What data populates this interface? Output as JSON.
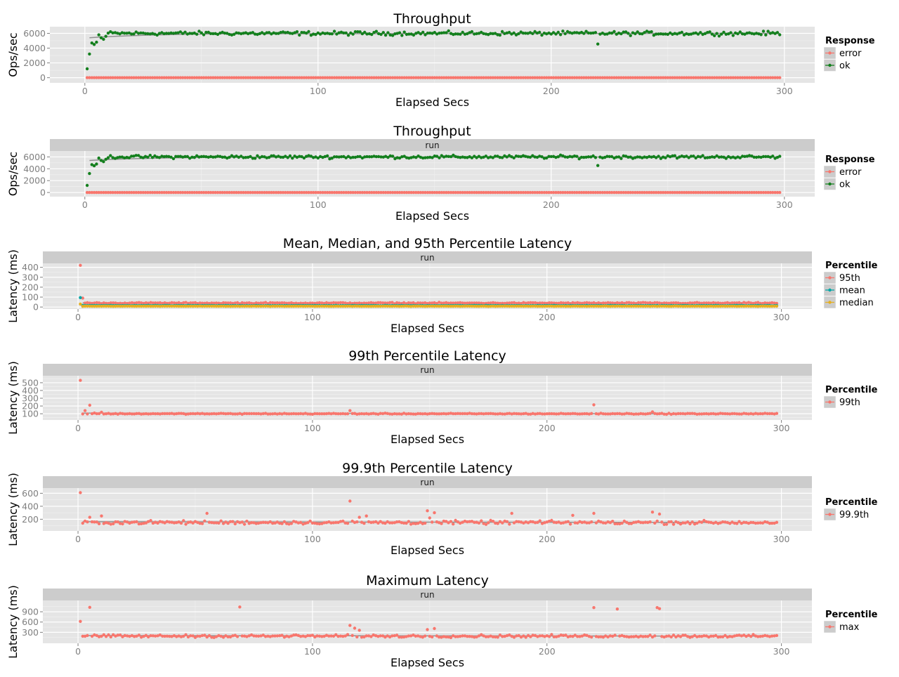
{
  "colors": {
    "ok": "#137f1d",
    "error": "#f8766d",
    "teal": "#00a6a6",
    "orange": "#e6b020",
    "panel": "#e5e5e5",
    "grid": "#ffffff",
    "strip": "#cccccc",
    "smooth": "#7a7a7a"
  },
  "chart_data": [
    {
      "type": "scatter",
      "title": "Throughput",
      "xlabel": "Elapsed Secs",
      "ylabel": "Ops/sec",
      "xlim": [
        -15,
        313
      ],
      "ylim": [
        -700,
        6900
      ],
      "xticks": [
        0,
        100,
        200,
        300
      ],
      "xtick_labels": [
        "0",
        "100",
        "200",
        "300"
      ],
      "yticks": [
        0,
        2000,
        4000,
        6000
      ],
      "ytick_labels": [
        "0",
        "2000",
        "4000",
        "6000"
      ],
      "legend": {
        "title": "Response",
        "position": "right",
        "entries": [
          "error",
          "ok"
        ]
      },
      "series": [
        {
          "name": "error",
          "description": "constant 0 ops/sec across 1-298 s",
          "x_range": [
            1,
            298
          ],
          "baseline": 0,
          "values": [
            0
          ]
        },
        {
          "name": "ok",
          "description": "ramps from ~1200 at t=1 to ~6000 by t=10, then ~6000 with noise",
          "startup": [
            [
              1,
              1200
            ],
            [
              2,
              3200
            ],
            [
              3,
              4700
            ],
            [
              4,
              4500
            ],
            [
              5,
              4800
            ],
            [
              6,
              5800
            ],
            [
              7,
              5400
            ],
            [
              8,
              5200
            ],
            [
              9,
              5600
            ]
          ],
          "plateau": 6000,
          "dips": [
            [
              220,
              4550
            ]
          ]
        }
      ]
    },
    {
      "type": "scatter",
      "title": "Throughput",
      "strip": "run",
      "xlabel": "Elapsed Secs",
      "ylabel": "Ops/sec",
      "xlim": [
        -15,
        313
      ],
      "ylim": [
        -700,
        7000
      ],
      "xticks": [
        0,
        100,
        200,
        300
      ],
      "xtick_labels": [
        "0",
        "100",
        "200",
        "300"
      ],
      "yticks": [
        0,
        2000,
        4000,
        6000
      ],
      "ytick_labels": [
        "0",
        "2000",
        "4000",
        "6000"
      ],
      "legend": {
        "title": "Response",
        "position": "right",
        "entries": [
          "error",
          "ok"
        ]
      },
      "series": [
        {
          "name": "error",
          "x_range": [
            1,
            298
          ],
          "baseline": 0,
          "values": [
            0
          ]
        },
        {
          "name": "ok",
          "startup": [
            [
              1,
              1200
            ],
            [
              2,
              3200
            ],
            [
              3,
              4700
            ],
            [
              4,
              4500
            ],
            [
              5,
              4800
            ],
            [
              6,
              5800
            ],
            [
              7,
              5400
            ],
            [
              8,
              5200
            ],
            [
              9,
              5600
            ]
          ],
          "plateau": 6000,
          "dips": [
            [
              220,
              4550
            ]
          ]
        }
      ]
    },
    {
      "type": "scatter",
      "title": "Mean, Median, and 95th Percentile Latency",
      "strip": "run",
      "xlabel": "Elapsed Secs",
      "ylabel": "Latency (ms)",
      "xlim": [
        -15,
        313
      ],
      "ylim": [
        -20,
        440
      ],
      "xticks": [
        0,
        100,
        200,
        300
      ],
      "xtick_labels": [
        "0",
        "100",
        "200",
        "300"
      ],
      "yticks": [
        0,
        100,
        200,
        300,
        400
      ],
      "ytick_labels": [
        "0",
        "100",
        "200",
        "300",
        "400"
      ],
      "legend": {
        "title": "Percentile",
        "position": "right",
        "entries": [
          "95th",
          "mean",
          "median"
        ]
      },
      "series": [
        {
          "name": "95th",
          "outliers": [
            [
              1,
              420
            ],
            [
              2,
              90
            ]
          ],
          "plateau": 40
        },
        {
          "name": "mean",
          "outliers": [
            [
              1,
              95
            ]
          ],
          "plateau": 15
        },
        {
          "name": "median",
          "outliers": [
            [
              1,
              30
            ]
          ],
          "plateau": 8
        }
      ]
    },
    {
      "type": "scatter",
      "title": "99th Percentile Latency",
      "strip": "run",
      "xlabel": "Elapsed Secs",
      "ylabel": "Latency (ms)",
      "xlim": [
        -15,
        313
      ],
      "ylim": [
        20,
        590
      ],
      "xticks": [
        0,
        100,
        200,
        300
      ],
      "xtick_labels": [
        "0",
        "100",
        "200",
        "300"
      ],
      "yticks": [
        100,
        200,
        300,
        400,
        500
      ],
      "ytick_labels": [
        "100",
        "200",
        "300",
        "400",
        "500"
      ],
      "legend": {
        "title": "Percentile",
        "position": "right",
        "entries": [
          "99th"
        ]
      },
      "series": [
        {
          "name": "99th",
          "outliers": [
            [
              1,
              530
            ],
            [
              3,
              140
            ],
            [
              5,
              210
            ],
            [
              7,
              110
            ],
            [
              10,
              120
            ],
            [
              116,
              140
            ],
            [
              220,
              215
            ],
            [
              245,
              125
            ]
          ],
          "plateau": 100
        }
      ]
    },
    {
      "type": "scatter",
      "title": "99.9th Percentile Latency",
      "strip": "run",
      "xlabel": "Elapsed Secs",
      "ylabel": "Latency (ms)",
      "xlim": [
        -15,
        313
      ],
      "ylim": [
        20,
        680
      ],
      "xticks": [
        0,
        100,
        200,
        300
      ],
      "xtick_labels": [
        "0",
        "100",
        "200",
        "300"
      ],
      "yticks": [
        200,
        400,
        600
      ],
      "ytick_labels": [
        "200",
        "400",
        "600"
      ],
      "legend": {
        "title": "Percentile",
        "position": "right",
        "entries": [
          "99.9th"
        ]
      },
      "series": [
        {
          "name": "99.9th",
          "outliers": [
            [
              1,
              610
            ],
            [
              5,
              230
            ],
            [
              10,
              250
            ],
            [
              55,
              290
            ],
            [
              116,
              480
            ],
            [
              120,
              230
            ],
            [
              123,
              250
            ],
            [
              149,
              330
            ],
            [
              150,
              220
            ],
            [
              152,
              300
            ],
            [
              185,
              290
            ],
            [
              211,
              260
            ],
            [
              220,
              290
            ],
            [
              245,
              310
            ],
            [
              248,
              280
            ]
          ],
          "plateau": 150
        }
      ]
    },
    {
      "type": "scatter",
      "title": "Maximum Latency",
      "strip": "run",
      "xlabel": "Elapsed Secs",
      "ylabel": "Latency (ms)",
      "xlim": [
        -15,
        313
      ],
      "ylim": [
        -20,
        1230
      ],
      "xticks": [
        0,
        100,
        200,
        300
      ],
      "xtick_labels": [
        "0",
        "100",
        "200",
        "300"
      ],
      "yticks": [
        300,
        600,
        900
      ],
      "ytick_labels": [
        "300",
        "600",
        "900"
      ],
      "legend": {
        "title": "Percentile",
        "position": "right",
        "entries": [
          "max"
        ]
      },
      "series": [
        {
          "name": "max",
          "outliers": [
            [
              1,
              620
            ],
            [
              5,
              1030
            ],
            [
              69,
              1040
            ],
            [
              116,
              500
            ],
            [
              118,
              420
            ],
            [
              120,
              360
            ],
            [
              149,
              380
            ],
            [
              152,
              410
            ],
            [
              220,
              1020
            ],
            [
              230,
              980
            ],
            [
              247,
              1020
            ],
            [
              248,
              990
            ]
          ],
          "plateau": 190
        }
      ]
    }
  ]
}
